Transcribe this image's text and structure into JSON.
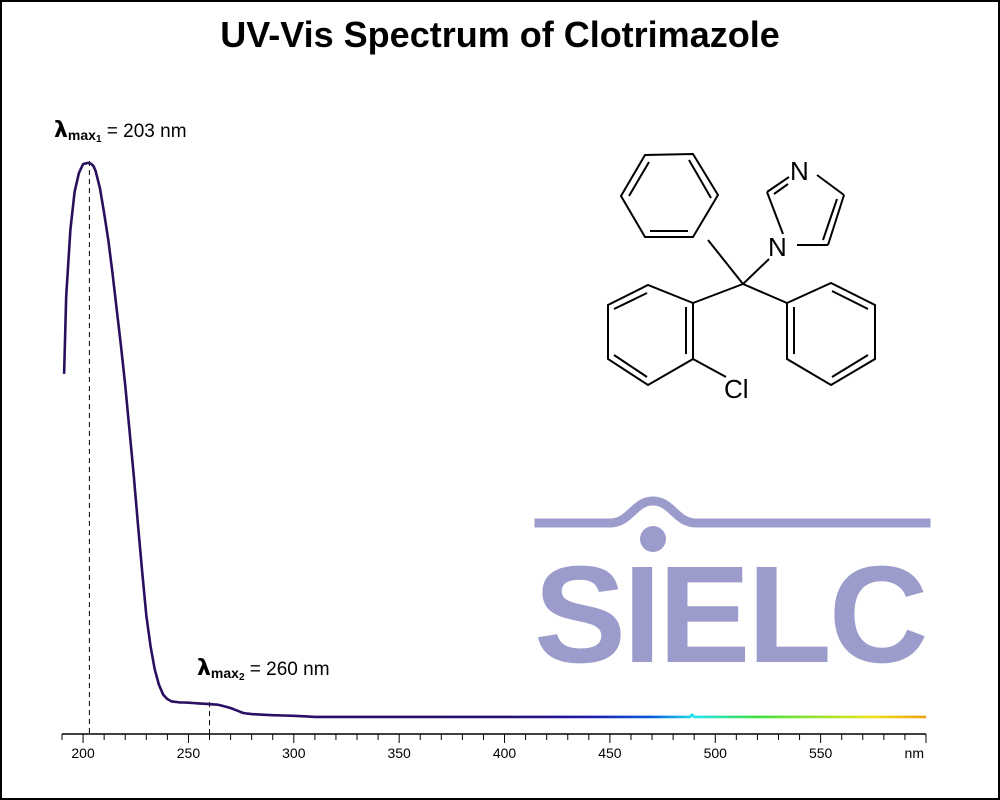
{
  "colors": {
    "curve": "#2a0f5c",
    "logo": "#9c9ccc",
    "axis": "#000000"
  },
  "chart_data": {
    "type": "line",
    "title": "UV-Vis Spectrum of Clotrimazole",
    "xlabel": "",
    "ylabel": "",
    "x_unit": "nm",
    "xlim": [
      190,
      600
    ],
    "x_ticks": [
      200,
      250,
      300,
      350,
      400,
      450,
      500,
      550
    ],
    "ylim": [
      0,
      1
    ],
    "grid": false,
    "gradient_stops": [
      {
        "x": 190,
        "color": "#2a0f5c"
      },
      {
        "x": 400,
        "color": "#2a1070"
      },
      {
        "x": 440,
        "color": "#1f1aa8"
      },
      {
        "x": 470,
        "color": "#0a5ce0"
      },
      {
        "x": 490,
        "color": "#22e4ee"
      },
      {
        "x": 520,
        "color": "#3fdf3f"
      },
      {
        "x": 575,
        "color": "#eee41a"
      },
      {
        "x": 600,
        "color": "#f0a012"
      }
    ],
    "series": [
      {
        "x": [
          191,
          192,
          194,
          196,
          198,
          200,
          202,
          203,
          204,
          205,
          206,
          208,
          210,
          212,
          214,
          216,
          218,
          220,
          222,
          224,
          226,
          228,
          230,
          232,
          234,
          236,
          238,
          240,
          242,
          244,
          246,
          248,
          250,
          252,
          254,
          256,
          258,
          260,
          262,
          264,
          266,
          268,
          270,
          272,
          274,
          276,
          278,
          280,
          285,
          290,
          295,
          300,
          305,
          310,
          320,
          350,
          400,
          450,
          488,
          489,
          490,
          500,
          550,
          600
        ],
        "y": [
          0.62,
          0.76,
          0.88,
          0.948,
          0.982,
          0.998,
          1.0,
          1.0,
          0.998,
          0.994,
          0.985,
          0.955,
          0.91,
          0.86,
          0.8,
          0.735,
          0.67,
          0.6,
          0.52,
          0.44,
          0.35,
          0.265,
          0.185,
          0.13,
          0.088,
          0.06,
          0.042,
          0.034,
          0.03,
          0.029,
          0.028,
          0.028,
          0.0275,
          0.027,
          0.0265,
          0.026,
          0.0255,
          0.025,
          0.0245,
          0.024,
          0.022,
          0.02,
          0.018,
          0.015,
          0.012,
          0.009,
          0.008,
          0.007,
          0.006,
          0.005,
          0.0045,
          0.004,
          0.003,
          0.002,
          0.002,
          0.002,
          0.002,
          0.002,
          0.002,
          0.006,
          0.002,
          0.002,
          0.002,
          0.002
        ]
      }
    ],
    "annotations": [
      {
        "lambda": "λ",
        "main": "max",
        "sub": "1",
        "text": " = 203 nm",
        "x": 203
      },
      {
        "lambda": "λ",
        "main": "max",
        "sub": "2",
        "text": " = 260 nm",
        "x": 260
      }
    ]
  },
  "molecule": {
    "atom_n_top": "N",
    "atom_n_ring": "N",
    "atom_cl": "Cl"
  },
  "logo": {
    "text": "SIELC"
  }
}
